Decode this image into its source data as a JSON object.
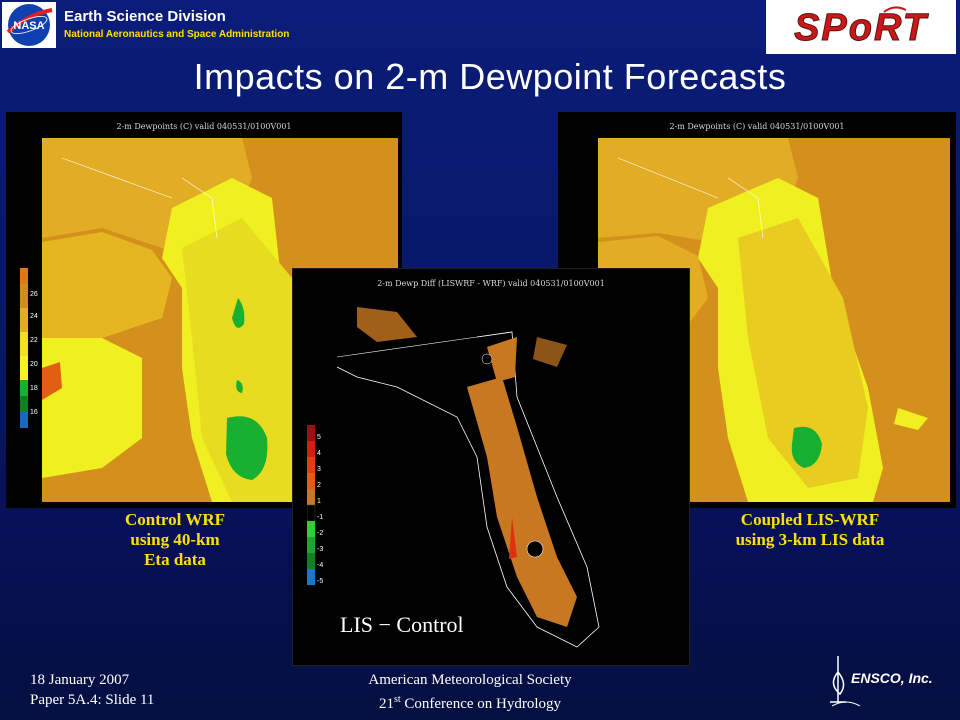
{
  "header": {
    "division": "Earth Science Division",
    "agency": "National Aeronautics and Space Administration",
    "nasa_logo_text": "NASA",
    "sport_logo_text": "SPoRT"
  },
  "slide": {
    "title": "Impacts on 2-m Dewpoint Forecasts"
  },
  "left_panel": {
    "map_title": "2-m Dewpoints (C) valid 040531/0100V001",
    "scale_labels": [
      "26",
      "24",
      "22",
      "20",
      "18",
      "16"
    ],
    "caption_lines": [
      "Control WRF",
      "using 40-km",
      "Eta data"
    ]
  },
  "right_panel": {
    "map_title": "2-m Dewpoints (C) valid 040531/0100V001",
    "caption_lines": [
      "Coupled LIS-WRF",
      "using 3-km LIS data"
    ]
  },
  "center_panel": {
    "map_title": "2-m Dewp Diff (LISWRF - WRF) valid 040531/0100V001",
    "scale_labels": [
      "5",
      "4",
      "3",
      "2",
      "1",
      "-1",
      "-2",
      "-3",
      "-4",
      "-5"
    ],
    "overlay_label": "LIS − Control"
  },
  "footer": {
    "date": "18 January 2007",
    "paper": "Paper 5A.4:  Slide 11",
    "society": "American Meteorological Society",
    "conference_ordinal": "21",
    "conference_suffix": "st",
    "conference_rest": " Conference on Hydrology",
    "company": "ENSCO, Inc."
  },
  "colors": {
    "background": "#081868",
    "caption": "#ffe000",
    "dewpoint_high": "#d08c1c",
    "dewpoint_mid": "#e6c020",
    "dewpoint_low": "#f0f020",
    "dewpoint_green": "#18b030",
    "diff_orange": "#c87820",
    "diff_red": "#e03010"
  }
}
